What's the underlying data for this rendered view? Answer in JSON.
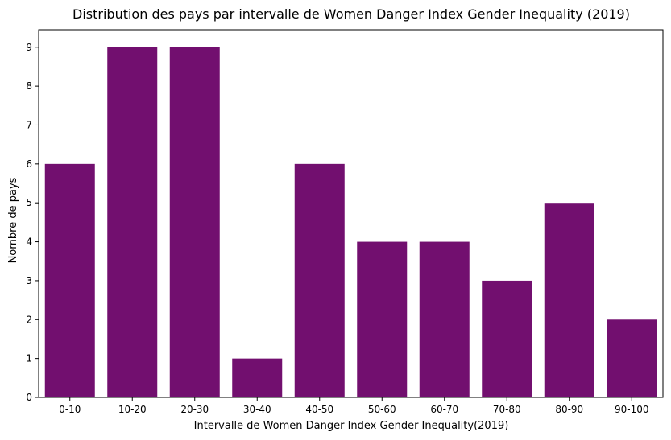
{
  "chart_data": {
    "type": "bar",
    "title": "Distribution des pays par intervalle de Women Danger Index Gender Inequality (2019)",
    "xlabel": "Intervalle de Women Danger Index Gender Inequality(2019)",
    "ylabel": "Nombre de pays",
    "categories": [
      "0-10",
      "10-20",
      "20-30",
      "30-40",
      "40-50",
      "50-60",
      "60-70",
      "70-80",
      "80-90",
      "90-100"
    ],
    "values": [
      6,
      9,
      9,
      1,
      6,
      4,
      4,
      3,
      5,
      2
    ],
    "ylim": [
      0,
      9.45
    ],
    "yticks": [
      0,
      1,
      2,
      3,
      4,
      5,
      6,
      7,
      8,
      9
    ],
    "bar_color": "#720f6f",
    "grid": false,
    "legend": "none"
  }
}
